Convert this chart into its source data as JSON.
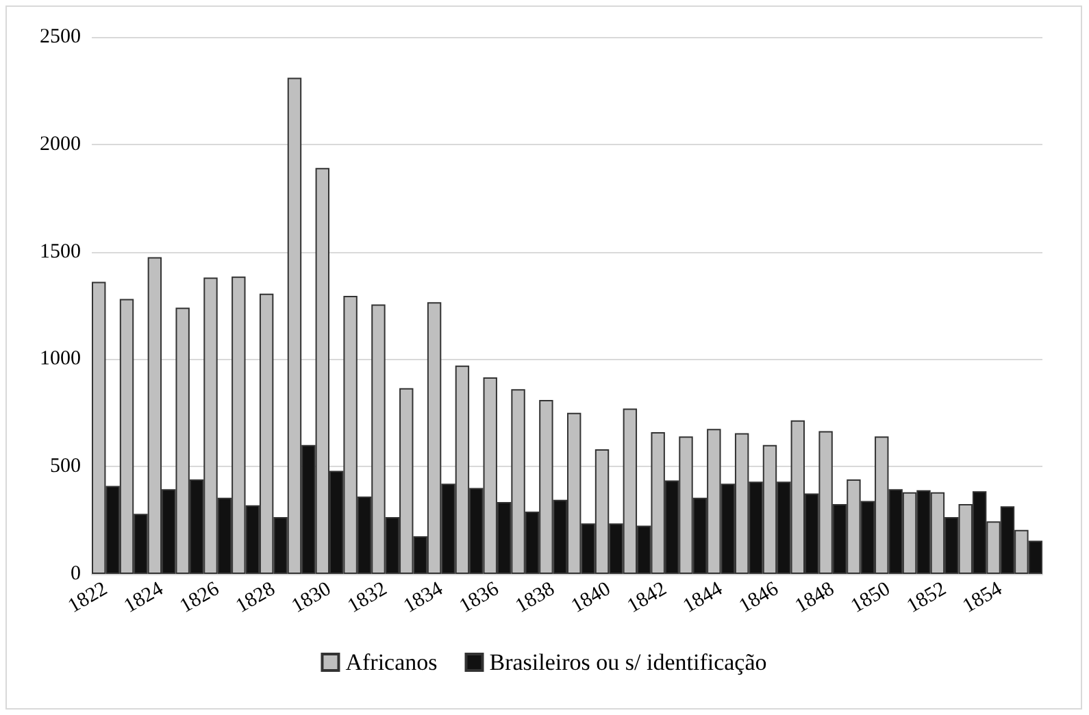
{
  "chart_data": {
    "type": "bar",
    "categories": [
      "1822",
      null,
      "1824",
      null,
      "1826",
      null,
      "1828",
      null,
      "1830",
      null,
      "1832",
      null,
      "1834",
      null,
      "1836",
      null,
      "1838",
      null,
      "1840",
      null,
      "1842",
      null,
      "1844",
      null,
      "1846",
      null,
      "1848",
      null,
      "1850",
      null,
      "1852",
      null,
      "1854",
      null
    ],
    "series": [
      {
        "name": "Africanos",
        "color": "#bfbfbf",
        "values": [
          1360,
          1280,
          1475,
          1240,
          1380,
          1385,
          1305,
          2310,
          1890,
          1295,
          1255,
          865,
          1265,
          970,
          915,
          860,
          810,
          750,
          580,
          770,
          660,
          640,
          675,
          655,
          600,
          715,
          665,
          440,
          640,
          380,
          380,
          325,
          245,
          205
        ]
      },
      {
        "name": "Brasileiros ou s/ identificação",
        "color": "#111111",
        "values": [
          410,
          280,
          395,
          440,
          355,
          320,
          265,
          600,
          480,
          360,
          265,
          175,
          420,
          400,
          335,
          290,
          345,
          235,
          235,
          225,
          435,
          355,
          420,
          430,
          430,
          375,
          325,
          340,
          395,
          390,
          265,
          385,
          315,
          155
        ]
      }
    ],
    "ylim": [
      0,
      2500
    ],
    "yticks": [
      0,
      500,
      1000,
      1500,
      2000,
      2500
    ],
    "grid": "y",
    "legend": "bottom"
  }
}
